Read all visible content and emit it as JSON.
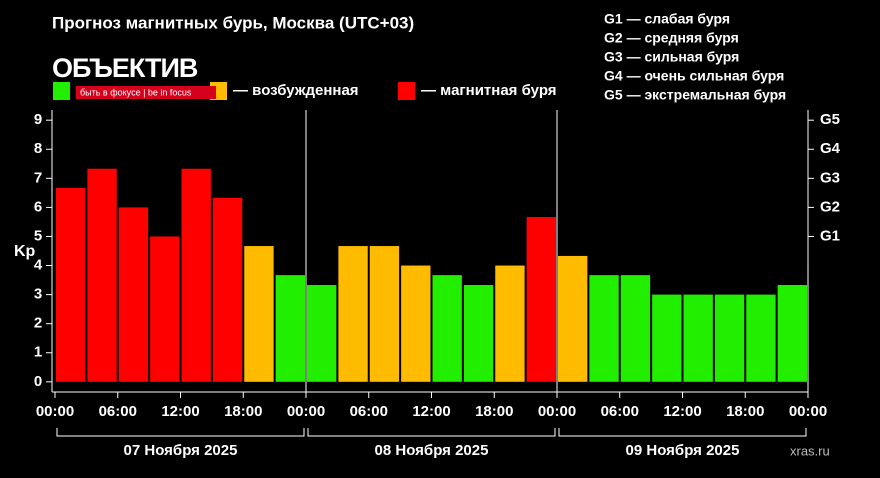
{
  "chart_data": {
    "type": "bar",
    "title": "Прогноз магнитных бурь, Москва (UTC+03)",
    "ylabel": "Kp",
    "values": [
      6.67,
      7.33,
      6,
      5,
      7.33,
      6.33,
      4.67,
      3.67,
      3.33,
      4.67,
      4.67,
      4,
      3.67,
      3.33,
      4,
      5.67,
      4.33,
      3.67,
      3.67,
      3,
      3,
      3,
      3,
      3.33
    ],
    "bar_colors": [
      "#ff0000",
      "#ff0000",
      "#ff0000",
      "#ff0000",
      "#ff0000",
      "#ff0000",
      "#ffbb00",
      "#22ee00",
      "#22ee00",
      "#ffbb00",
      "#ffbb00",
      "#ffbb00",
      "#22ee00",
      "#22ee00",
      "#ffbb00",
      "#ff0000",
      "#ffbb00",
      "#22ee00",
      "#22ee00",
      "#22ee00",
      "#22ee00",
      "#22ee00",
      "#22ee00",
      "#22ee00"
    ],
    "xlim": [
      0,
      72
    ],
    "xticks": [
      {
        "value": 0,
        "label": "00:00"
      },
      {
        "value": 6,
        "label": "06:00"
      },
      {
        "value": 12,
        "label": "12:00"
      },
      {
        "value": 18,
        "label": "18:00"
      },
      {
        "value": 24,
        "label": "00:00"
      },
      {
        "value": 30,
        "label": "06:00"
      },
      {
        "value": 36,
        "label": "12:00"
      },
      {
        "value": 42,
        "label": "18:00"
      },
      {
        "value": 48,
        "label": "00:00"
      },
      {
        "value": 54,
        "label": "06:00"
      },
      {
        "value": 60,
        "label": "12:00"
      },
      {
        "value": 66,
        "label": "18:00"
      },
      {
        "value": 72,
        "label": "00:00"
      }
    ],
    "days": [
      "07 Ноября 2025",
      "08 Ноября 2025",
      "09 Ноября 2025"
    ],
    "ylim": [
      -0.35,
      9.35
    ],
    "yticks": [
      0,
      1,
      2,
      3,
      4,
      5,
      6,
      7,
      8,
      9
    ],
    "y2ticks": [
      {
        "value": 5,
        "label": "G1"
      },
      {
        "value": 6,
        "label": "G2"
      },
      {
        "value": 7,
        "label": "G3"
      },
      {
        "value": 8,
        "label": "G4"
      },
      {
        "value": 9,
        "label": "G5"
      }
    ],
    "legend": [
      {
        "label": "— возбужденная",
        "color": "#ffbb00"
      },
      {
        "label": "— магнитная буря",
        "color": "#ff0000"
      }
    ],
    "legend_hidden_color": "#22ee00",
    "gscale": [
      "G1 — слабая буря",
      "G2 — средняя буря",
      "G3 — сильная буря",
      "G4 — очень сильная буря",
      "G5 — экстремальная буря"
    ],
    "watermark": "ОБЪЕКТИВ",
    "watermark_tagline": "быть в фокусе | be in focus",
    "source": "xras.ru"
  }
}
